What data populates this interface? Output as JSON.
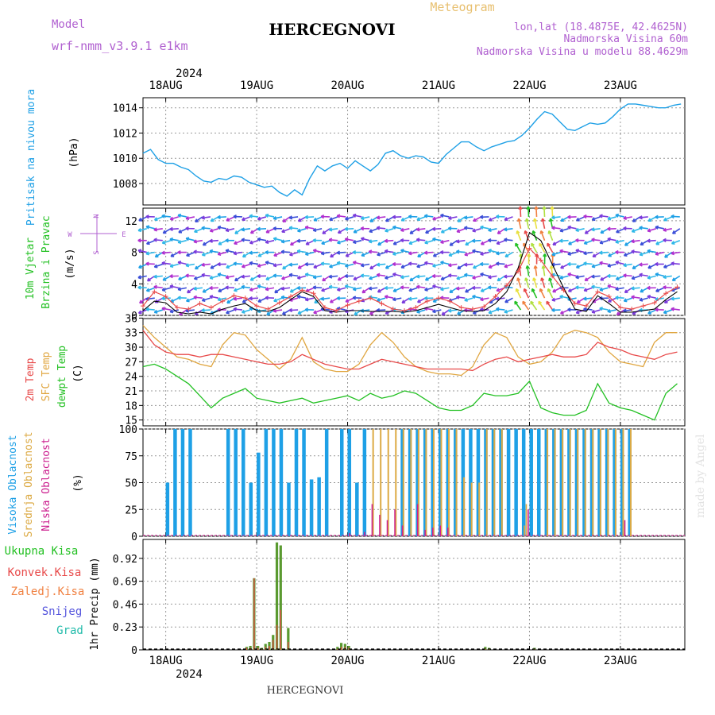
{
  "header": {
    "model_label": "Model",
    "model_name": "wrf-nmm_v3.9.1 e1km",
    "title": "HERCEGNOVI",
    "chart_kind": "Meteogram",
    "lonlat": "lon,lat (18.4875E, 42.4625N)",
    "altitude": "Nadmorska Visina 60m",
    "model_altitude": "Nadmorska Visina u modelu 88.4629m",
    "footer": "HERCEGNOVI",
    "watermark": "made by Angel",
    "year": "2024"
  },
  "colors": {
    "pressure": "#1ea0e6",
    "temp2m": "#e84a4a",
    "sfc": "#e0a640",
    "dewpt": "#22c022",
    "high_cloud": "#1ea0e6",
    "mid_cloud": "#dcaa44",
    "low_cloud": "#cc1f8f",
    "total_precip": "#5a9a30",
    "conv_precip": "#e84a4a",
    "frz_precip": "#f08040",
    "snow": "#5555dd",
    "hail": "#22bbaa"
  },
  "compass": {
    "n": "N",
    "s": "S",
    "e": "E",
    "w": "W"
  },
  "chart_data": [
    {
      "type": "line",
      "panel": "pressure",
      "ylabel": [
        "Pritisak na nivou mora",
        "(hPa)"
      ],
      "x_ticks": [
        "18AUG",
        "19AUG",
        "20AUG",
        "21AUG",
        "22AUG",
        "23AUG"
      ],
      "ylim": [
        1006.3,
        1014.8
      ],
      "y_ticks": [
        1008,
        1010,
        1012,
        1014
      ],
      "grid": true,
      "x": [
        0,
        2,
        4,
        6,
        8,
        10,
        12,
        14,
        16,
        18,
        20,
        22,
        24,
        26,
        28,
        30,
        32,
        34,
        36,
        38,
        40,
        42,
        44,
        46,
        48,
        50,
        52,
        54,
        56,
        58,
        60,
        62,
        64,
        66,
        68,
        70,
        72,
        74,
        76,
        78,
        80,
        82,
        84,
        86,
        88,
        90,
        92,
        94,
        96,
        98,
        100,
        102,
        104,
        106,
        108,
        110,
        112,
        114,
        116,
        118,
        120,
        122,
        124,
        126,
        128,
        130,
        132,
        134,
        136,
        138,
        140,
        142
      ],
      "series": [
        {
          "values": [
            1010.4,
            1010.7,
            1009.9,
            1009.6,
            1009.6,
            1009.3,
            1009.1,
            1008.6,
            1008.2,
            1008.1,
            1008.4,
            1008.3,
            1008.6,
            1008.5,
            1008.1,
            1007.9,
            1007.7,
            1007.8,
            1007.3,
            1007.0,
            1007.5,
            1007.1,
            1008.4,
            1009.4,
            1009.0,
            1009.4,
            1009.6,
            1009.2,
            1009.8,
            1009.4,
            1009.0,
            1009.5,
            1010.4,
            1010.6,
            1010.2,
            1010.0,
            1010.2,
            1010.1,
            1009.7,
            1009.6,
            1010.3,
            1010.8,
            1011.3,
            1011.3,
            1010.9,
            1010.6,
            1010.9,
            1011.1,
            1011.3,
            1011.4,
            1011.8,
            1012.4,
            1013.1,
            1013.7,
            1013.5,
            1012.9,
            1012.3,
            1012.2,
            1012.5,
            1012.8,
            1012.7,
            1012.8,
            1013.3,
            1013.9,
            1014.3,
            1014.3,
            1014.2,
            1014.1,
            1014.0,
            1014.0,
            1014.2,
            1014.3
          ]
        }
      ]
    },
    {
      "type": "line",
      "panel": "wind",
      "ylabel": [
        "10m Vjetar",
        "Brzina i Pravac",
        "(m/s)"
      ],
      "ylim": [
        0,
        13.6
      ],
      "y_ticks": [
        0,
        4,
        8,
        12
      ],
      "grid": true,
      "x": [
        0,
        3,
        6,
        9,
        12,
        15,
        18,
        21,
        24,
        27,
        30,
        33,
        36,
        39,
        42,
        45,
        48,
        51,
        54,
        57,
        60,
        63,
        66,
        69,
        72,
        75,
        78,
        81,
        84,
        87,
        90,
        93,
        96,
        99,
        102,
        105,
        108,
        111,
        114,
        117,
        120,
        123,
        126,
        129,
        132,
        135,
        138,
        141
      ],
      "series": [
        {
          "values": [
            1.2,
            3.0,
            2.4,
            1.0,
            0.8,
            1.5,
            1.0,
            1.8,
            2.5,
            2.2,
            1.2,
            0.8,
            1.6,
            2.4,
            3.2,
            2.8,
            1.0,
            0.6,
            1.3,
            1.8,
            2.2,
            1.5,
            0.8,
            0.6,
            1.0,
            1.8,
            2.2,
            1.8,
            1.0,
            0.8,
            1.1,
            2.4,
            3.8,
            5.6,
            8.5,
            7.0,
            5.0,
            3.2,
            1.5,
            1.2,
            3.0,
            2.4,
            1.0,
            0.8,
            1.2,
            1.6,
            2.8,
            3.6
          ]
        },
        {
          "values": [
            0.6,
            1.8,
            1.6,
            0.4,
            0.2,
            0.4,
            0.2,
            0.8,
            1.2,
            1.5,
            0.6,
            0.5,
            1.0,
            2.0,
            3.0,
            2.4,
            0.6,
            0.4,
            0.6,
            0.6,
            0.5,
            0.5,
            0.5,
            0.4,
            0.6,
            1.0,
            1.4,
            1.0,
            0.6,
            0.5,
            0.6,
            1.5,
            3.0,
            6.0,
            10.5,
            9.5,
            6.5,
            3.5,
            0.8,
            0.5,
            2.5,
            1.5,
            0.4,
            0.4,
            0.6,
            0.8,
            2.0,
            3.0
          ]
        }
      ]
    },
    {
      "type": "line",
      "panel": "temperature",
      "ylabel": [
        "2m Temp",
        "SFC Temp",
        "dewpt Temp",
        "(C)"
      ],
      "ylim": [
        13.8,
        35.9
      ],
      "y_ticks": [
        15,
        18,
        21,
        24,
        27,
        30,
        33,
        36
      ],
      "grid": true,
      "x": [
        0,
        3,
        6,
        9,
        12,
        15,
        18,
        21,
        24,
        27,
        30,
        33,
        36,
        39,
        42,
        45,
        48,
        51,
        54,
        57,
        60,
        63,
        66,
        69,
        72,
        75,
        78,
        81,
        84,
        87,
        90,
        93,
        96,
        99,
        102,
        105,
        108,
        111,
        114,
        117,
        120,
        123,
        126,
        129,
        132,
        135,
        138,
        141
      ],
      "series": [
        {
          "name": "2m Temp",
          "values": [
            33.5,
            30.5,
            29.0,
            28.5,
            28.5,
            28.0,
            28.5,
            28.5,
            28.0,
            27.5,
            27.0,
            26.5,
            26.5,
            27.0,
            28.5,
            27.5,
            26.5,
            26.0,
            25.5,
            25.5,
            26.5,
            27.5,
            27.0,
            26.5,
            26.0,
            25.5,
            25.5,
            25.5,
            25.5,
            25.2,
            26.5,
            27.5,
            28.0,
            27.0,
            27.5,
            28.0,
            28.5,
            28.0,
            28.0,
            28.5,
            31.0,
            30.0,
            29.5,
            28.5,
            28.0,
            27.5,
            28.5,
            29.0
          ]
        },
        {
          "name": "SFC Temp",
          "values": [
            34.5,
            32.0,
            30.0,
            28.0,
            27.5,
            26.5,
            26.0,
            30.5,
            33.0,
            32.5,
            29.5,
            27.5,
            25.5,
            27.5,
            32.0,
            27.0,
            25.5,
            25.0,
            25.0,
            26.5,
            30.5,
            33.0,
            31.0,
            28.0,
            26.0,
            25.0,
            24.5,
            24.5,
            24.2,
            26.0,
            30.5,
            33.0,
            32.0,
            28.0,
            26.5,
            27.0,
            29.0,
            32.5,
            33.5,
            33.0,
            32.0,
            29.0,
            27.0,
            26.5,
            26.0,
            31.0,
            33.0,
            33.0
          ]
        },
        {
          "name": "dewpt Temp",
          "values": [
            26.0,
            26.5,
            25.5,
            24.0,
            22.5,
            20.0,
            17.5,
            19.5,
            20.5,
            21.5,
            19.5,
            19.0,
            18.5,
            19.0,
            19.5,
            18.5,
            19.0,
            19.5,
            20.0,
            19.0,
            20.5,
            19.5,
            20.0,
            21.0,
            20.5,
            19.0,
            17.5,
            17.0,
            17.0,
            18.0,
            20.5,
            20.0,
            20.0,
            20.5,
            23.0,
            17.5,
            16.5,
            16.0,
            16.0,
            17.0,
            22.5,
            18.5,
            17.5,
            17.0,
            16.0,
            15.0,
            20.5,
            22.5
          ]
        }
      ]
    },
    {
      "type": "bar",
      "panel": "cloud",
      "ylabel": [
        "Visoka Oblacnost",
        "Srednja Oblacnost",
        "Niska Oblacnost",
        "(%)"
      ],
      "ylim": [
        0,
        100
      ],
      "y_ticks": [
        0,
        25,
        50,
        75,
        100
      ],
      "grid": true,
      "high_bars": [
        [
          3,
          50
        ],
        [
          4,
          100
        ],
        [
          5,
          100
        ],
        [
          6,
          100
        ],
        [
          11,
          100
        ],
        [
          12,
          100
        ],
        [
          13,
          100
        ],
        [
          14,
          50
        ],
        [
          15,
          78
        ],
        [
          16,
          100
        ],
        [
          17,
          100
        ],
        [
          18,
          100
        ],
        [
          19,
          50
        ],
        [
          20,
          100
        ],
        [
          21,
          100
        ],
        [
          22,
          53
        ],
        [
          23,
          55
        ],
        [
          24,
          100
        ],
        [
          26,
          100
        ],
        [
          27,
          100
        ],
        [
          28,
          50
        ],
        [
          29,
          100
        ],
        [
          34,
          100
        ],
        [
          35,
          100
        ],
        [
          36,
          100
        ],
        [
          37,
          100
        ],
        [
          38,
          100
        ],
        [
          39,
          100
        ],
        [
          40,
          100
        ],
        [
          41,
          100
        ],
        [
          42,
          100
        ],
        [
          43,
          100
        ],
        [
          44,
          100
        ],
        [
          45,
          100
        ],
        [
          46,
          100
        ],
        [
          47,
          100
        ],
        [
          48,
          100
        ],
        [
          49,
          100
        ],
        [
          50,
          100
        ],
        [
          51,
          100
        ],
        [
          52,
          100
        ],
        [
          53,
          100
        ],
        [
          54,
          100
        ],
        [
          55,
          100
        ],
        [
          56,
          100
        ],
        [
          57,
          100
        ],
        [
          58,
          100
        ],
        [
          59,
          100
        ],
        [
          60,
          100
        ],
        [
          61,
          100
        ],
        [
          62,
          100
        ],
        [
          63,
          100
        ],
        [
          64,
          100
        ]
      ],
      "mid_bars": [
        [
          30,
          100
        ],
        [
          31,
          100
        ],
        [
          32,
          100
        ],
        [
          33,
          100
        ],
        [
          34,
          100
        ],
        [
          35,
          100
        ],
        [
          36,
          100
        ],
        [
          37,
          100
        ],
        [
          38,
          100
        ],
        [
          39,
          100
        ],
        [
          40,
          100
        ],
        [
          41,
          100
        ],
        [
          42,
          55
        ],
        [
          43,
          50
        ],
        [
          44,
          50
        ],
        [
          45,
          100
        ],
        [
          46,
          100
        ],
        [
          47,
          100
        ],
        [
          53,
          100
        ],
        [
          54,
          100
        ],
        [
          55,
          100
        ],
        [
          56,
          100
        ],
        [
          57,
          100
        ],
        [
          58,
          100
        ],
        [
          59,
          100
        ],
        [
          60,
          100
        ],
        [
          61,
          100
        ],
        [
          62,
          100
        ],
        [
          63,
          100
        ],
        [
          64,
          100
        ]
      ],
      "low_bars": [
        [
          27,
          3
        ],
        [
          29,
          4
        ],
        [
          30,
          30
        ],
        [
          31,
          20
        ],
        [
          32,
          15
        ],
        [
          33,
          25
        ],
        [
          34,
          10
        ],
        [
          36,
          30
        ],
        [
          37,
          6
        ],
        [
          38,
          8
        ],
        [
          39,
          10
        ],
        [
          40,
          8
        ]
      ],
      "late_bars": [
        {
          "h": 100.5,
          "v": 10,
          "c": "mid_cloud"
        },
        {
          "h": 101,
          "v": 30,
          "c": "mid_cloud"
        },
        {
          "h": 101.5,
          "v": 25,
          "c": "low_cloud"
        },
        {
          "h": 104,
          "v": 5,
          "c": "high_cloud"
        },
        {
          "h": 127,
          "v": 15,
          "c": "low_cloud"
        }
      ]
    },
    {
      "type": "bar",
      "panel": "precip",
      "ylabel": [
        "Ukupna Kisa",
        "Konvek.Kisa",
        "Zaledj.Kisa",
        "Snijeg",
        "Grad",
        "1hr Precip (mm)"
      ],
      "ylim": [
        0,
        1.11
      ],
      "y_ticks": [
        0,
        0.23,
        0.46,
        0.69,
        0.92
      ],
      "grid": true,
      "bars": [
        [
          27,
          0.03,
          0.02
        ],
        [
          28,
          0.04,
          0.02
        ],
        [
          29,
          0.72,
          0.72
        ],
        [
          30,
          0.04,
          0.02
        ],
        [
          31,
          0.02,
          0.01
        ],
        [
          32,
          0.06,
          0.03
        ],
        [
          33,
          0.08,
          0.04
        ],
        [
          34,
          0.15,
          0.1
        ],
        [
          35,
          1.08,
          0.25
        ],
        [
          36,
          1.05,
          0.4
        ],
        [
          38,
          0.22,
          0.08
        ],
        [
          51,
          0.03,
          0.01
        ],
        [
          52,
          0.07,
          0.03
        ],
        [
          53,
          0.06,
          0.03
        ],
        [
          54,
          0.04,
          0.02
        ],
        [
          90,
          0.03,
          0.01
        ],
        [
          91,
          0.02,
          0.01
        ],
        [
          103,
          0.02,
          0.01
        ]
      ]
    }
  ]
}
